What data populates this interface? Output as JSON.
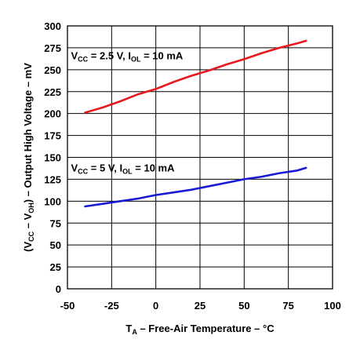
{
  "chart_data": {
    "type": "line",
    "xlabel": {
      "main": "T",
      "sub": "A",
      "rest": " – Free-Air Temperature – °C"
    },
    "ylabel": {
      "p1": "(V",
      "s1": "CC",
      "p2": " – V",
      "s2": "OH",
      "p3": ") – Output High Voltage – mV"
    },
    "xlim": [
      -50,
      100
    ],
    "ylim": [
      0,
      300
    ],
    "xticks": [
      -50,
      -25,
      0,
      25,
      50,
      75,
      100
    ],
    "yticks": [
      0,
      25,
      50,
      75,
      100,
      125,
      150,
      175,
      200,
      225,
      250,
      275,
      300
    ],
    "grid": true,
    "series": [
      {
        "color": "#e8191e",
        "x": [
          -40,
          -30,
          -20,
          -10,
          0,
          10,
          20,
          30,
          40,
          50,
          60,
          70,
          80,
          85
        ],
        "y": [
          201,
          207,
          214,
          222,
          228,
          236,
          243,
          249,
          256,
          262,
          269,
          275,
          280,
          283
        ],
        "label": {
          "main": "V",
          "sub1": "CC",
          "mid": " = 2.5 V, I",
          "sub2": "OL",
          "end": " = 10 mA",
          "x": -48,
          "y": 262
        }
      },
      {
        "color": "#1a1ad6",
        "x": [
          -40,
          -30,
          -20,
          -10,
          0,
          10,
          20,
          30,
          40,
          50,
          60,
          70,
          80,
          85
        ],
        "y": [
          94,
          97,
          100,
          103,
          107,
          110,
          113,
          117,
          121,
          125,
          128,
          132,
          135,
          138
        ],
        "label": {
          "main": "V",
          "sub1": "CC",
          "mid": " = 5 V, I",
          "sub2": "OL",
          "end": " = 10 mA",
          "x": -48,
          "y": 134
        }
      }
    ]
  }
}
